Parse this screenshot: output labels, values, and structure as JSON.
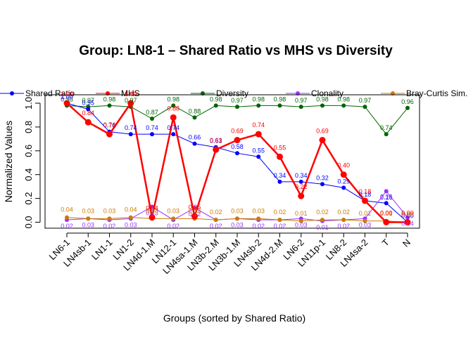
{
  "chart_data": {
    "type": "line",
    "title": "Group: LN8-1 – Shared Ratio vs MHS vs Diversity",
    "xlabel": "Groups (sorted by Shared Ratio)",
    "ylabel": "Normalized Values",
    "ylim": [
      -0.03,
      1.03
    ],
    "yticks": [
      "0.0",
      "0.2",
      "0.4",
      "0.6",
      "0.8",
      "1.0"
    ],
    "grid": false,
    "legend_position": "top",
    "categories": [
      "LN6-1",
      "LN4sb-1",
      "LN1-1",
      "LN1-2",
      "LN4d-1.M",
      "LN12-1",
      "LN4sa-1.M",
      "LN3b-2.M",
      "LN3b-1.M",
      "LN4sb-2",
      "LN4d-2.M",
      "LN6-2",
      "LN11p-1",
      "LN8-2",
      "LN4sa-2",
      "T",
      "N"
    ],
    "series": [
      {
        "name": "Shared Ratio",
        "color": "#0000ff",
        "values": [
          1.0,
          0.95,
          0.76,
          0.74,
          0.74,
          0.74,
          0.66,
          0.63,
          0.58,
          0.55,
          0.34,
          0.34,
          0.32,
          0.29,
          0.18,
          0.16,
          0.0
        ],
        "labels": [
          "1.00",
          "0.95",
          "0.76",
          "0.74",
          "0.74",
          "0.74",
          "0.66",
          "0.63",
          "0.58",
          "0.55",
          "0.34",
          "0.34",
          "0.32",
          "0.29",
          "0.18",
          "0.16",
          "0.00"
        ]
      },
      {
        "name": "MHS",
        "color": "#ff0000",
        "values": [
          1.0,
          0.84,
          0.74,
          1.0,
          0.04,
          0.88,
          0.05,
          0.61,
          0.69,
          0.74,
          0.55,
          0.22,
          0.69,
          0.4,
          0.18,
          0.0,
          0.0
        ],
        "labels": [
          "1.00",
          "0.84",
          "0.74",
          "1.00",
          "0.04",
          "0.88",
          "0.05",
          "0.61",
          "0.69",
          "0.74",
          "0.55",
          "0.22",
          "0.69",
          "0.40",
          "0.18",
          "0.00",
          "0.00"
        ]
      },
      {
        "name": "Diversity",
        "color": "#006400",
        "values": [
          0.98,
          0.97,
          0.98,
          0.97,
          0.87,
          0.98,
          0.88,
          0.98,
          0.97,
          0.98,
          0.98,
          0.97,
          0.98,
          0.98,
          0.97,
          0.74,
          0.96
        ],
        "labels": [
          "0.98",
          "0.97",
          "0.98",
          "0.97",
          "0.87",
          "0.98",
          "0.88",
          "0.98",
          "0.97",
          "0.98",
          "0.98",
          "0.97",
          "0.98",
          "0.98",
          "0.97",
          "0.74",
          "0.96"
        ]
      },
      {
        "name": "Clonality",
        "color": "#9b30ff",
        "values": [
          0.02,
          0.03,
          0.02,
          0.03,
          0.13,
          0.02,
          0.12,
          0.02,
          0.03,
          0.02,
          0.02,
          0.03,
          0.01,
          0.02,
          0.03,
          0.26,
          0.04
        ],
        "labels": [
          "0.02",
          "0.03",
          "0.02",
          "0.03",
          "0.13",
          "0.02",
          "0.12",
          "0.02",
          "0.03",
          "0.02",
          "0.02",
          "0.03",
          "0.01",
          "0.02",
          "0.03",
          "0.26",
          "0.04"
        ]
      },
      {
        "name": "Bray-Curtis Sim.",
        "color": "#cc7a00",
        "values": [
          0.04,
          0.03,
          0.03,
          0.04,
          0.03,
          0.03,
          0.03,
          0.02,
          0.03,
          0.03,
          0.02,
          0.01,
          0.02,
          0.02,
          0.01,
          0.01,
          0.0
        ],
        "labels": [
          "0.04",
          "0.03",
          "0.03",
          "0.04",
          "0.03",
          "0.03",
          "0.03",
          "0.02",
          "0.03",
          "0.03",
          "0.02",
          "0.01",
          "0.02",
          "0.02",
          "0.01",
          "0.01",
          "0.00"
        ]
      }
    ]
  }
}
